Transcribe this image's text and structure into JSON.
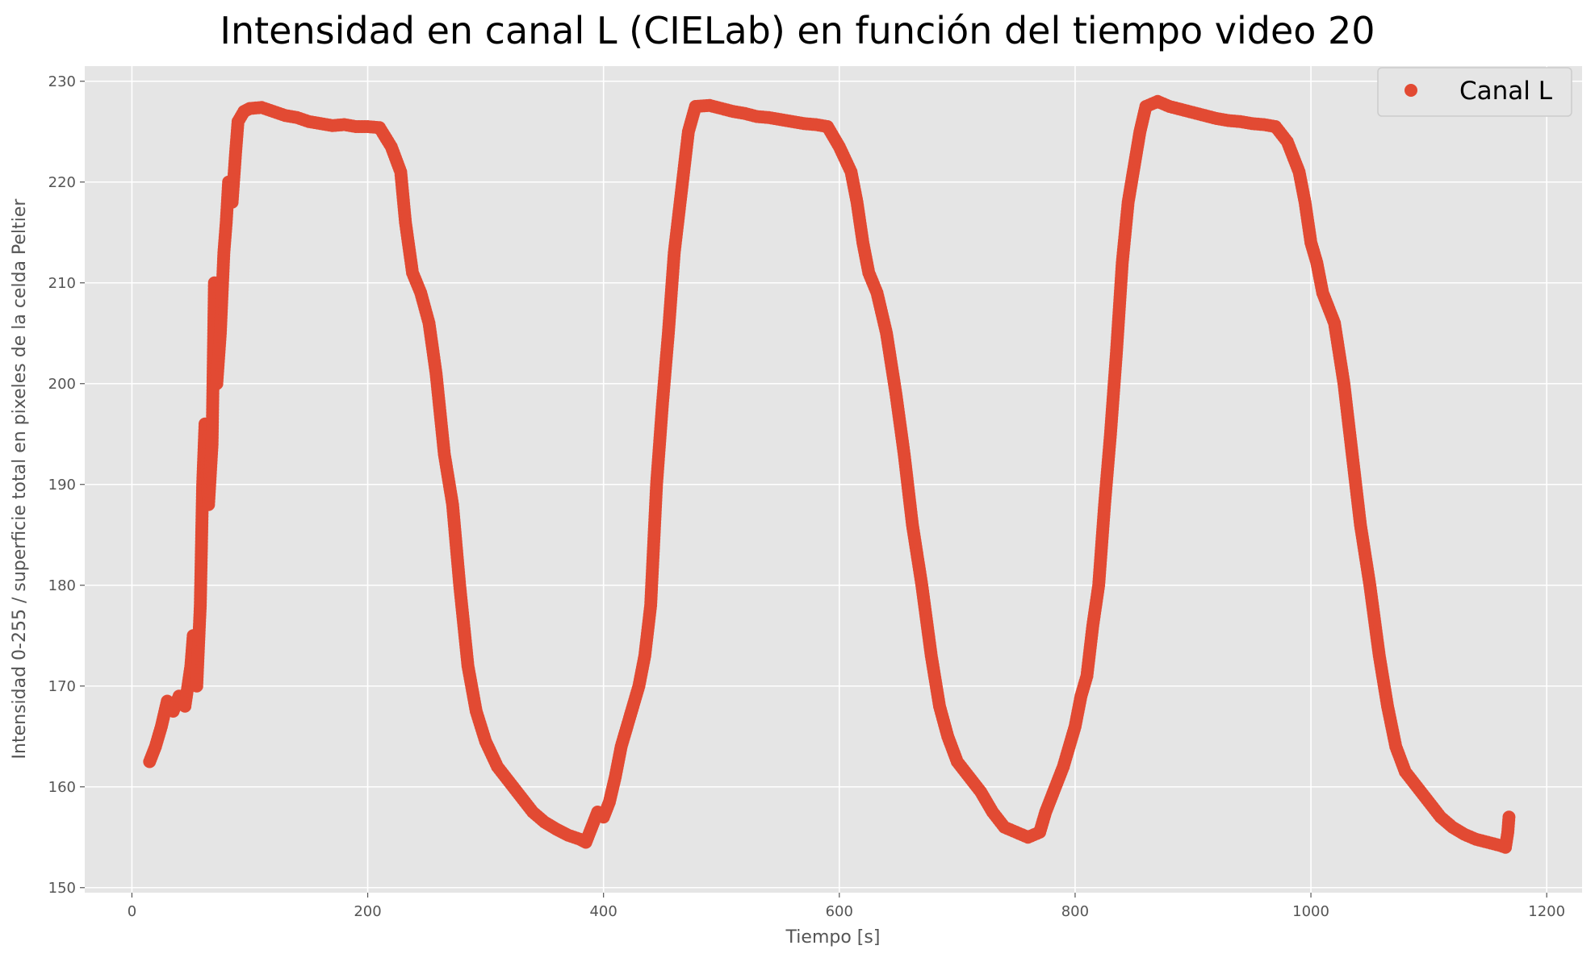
{
  "chart_data": {
    "type": "scatter",
    "title": "Intensidad en canal L (CIELab) en función del tiempo video 20",
    "xlabel": "Tiempo [s]",
    "ylabel": "Intensidad 0-255 / superficie total en pixeles de la celda Peltier",
    "xlim": [
      -40,
      1230
    ],
    "ylim": [
      149.5,
      231.5
    ],
    "x_ticks": [
      0,
      200,
      400,
      600,
      800,
      1000,
      1200
    ],
    "y_ticks": [
      150,
      160,
      170,
      180,
      190,
      200,
      210,
      220,
      230
    ],
    "grid": true,
    "legend_position": "top-right",
    "colors": {
      "series": "#E24A33",
      "plot_background": "#E5E5E5",
      "grid": "#FFFFFF"
    },
    "series": [
      {
        "name": "Canal L",
        "marker": "circle",
        "points": [
          [
            15,
            162.5
          ],
          [
            20,
            164
          ],
          [
            25,
            166
          ],
          [
            30,
            168.5
          ],
          [
            35,
            167.5
          ],
          [
            40,
            169
          ],
          [
            45,
            168
          ],
          [
            50,
            172
          ],
          [
            52,
            175
          ],
          [
            55,
            170
          ],
          [
            58,
            178
          ],
          [
            60,
            190
          ],
          [
            62,
            196
          ],
          [
            65,
            188
          ],
          [
            68,
            194
          ],
          [
            70,
            210
          ],
          [
            72,
            200
          ],
          [
            75,
            205
          ],
          [
            78,
            213
          ],
          [
            80,
            216
          ],
          [
            82,
            220
          ],
          [
            85,
            218
          ],
          [
            88,
            223
          ],
          [
            90,
            226
          ],
          [
            95,
            227
          ],
          [
            100,
            227.3
          ],
          [
            110,
            227.4
          ],
          [
            120,
            227
          ],
          [
            130,
            226.6
          ],
          [
            140,
            226.4
          ],
          [
            150,
            226
          ],
          [
            160,
            225.8
          ],
          [
            170,
            225.6
          ],
          [
            180,
            225.7
          ],
          [
            190,
            225.5
          ],
          [
            200,
            225.5
          ],
          [
            210,
            225.4
          ],
          [
            220,
            223.5
          ],
          [
            228,
            221
          ],
          [
            232,
            216
          ],
          [
            238,
            211
          ],
          [
            245,
            209
          ],
          [
            252,
            206
          ],
          [
            258,
            201
          ],
          [
            265,
            193
          ],
          [
            272,
            188
          ],
          [
            278,
            180
          ],
          [
            285,
            172
          ],
          [
            292,
            167.5
          ],
          [
            300,
            164.5
          ],
          [
            310,
            162
          ],
          [
            320,
            160.5
          ],
          [
            330,
            159
          ],
          [
            340,
            157.5
          ],
          [
            350,
            156.5
          ],
          [
            360,
            155.8
          ],
          [
            370,
            155.2
          ],
          [
            380,
            154.8
          ],
          [
            385,
            154.5
          ],
          [
            390,
            156
          ],
          [
            395,
            157.5
          ],
          [
            400,
            157
          ],
          [
            405,
            158.5
          ],
          [
            410,
            161
          ],
          [
            415,
            164
          ],
          [
            420,
            166
          ],
          [
            425,
            168
          ],
          [
            430,
            170
          ],
          [
            435,
            173
          ],
          [
            440,
            178
          ],
          [
            445,
            190
          ],
          [
            450,
            198
          ],
          [
            455,
            205
          ],
          [
            460,
            213
          ],
          [
            465,
            218
          ],
          [
            468,
            221
          ],
          [
            472,
            225
          ],
          [
            478,
            227.5
          ],
          [
            490,
            227.6
          ],
          [
            500,
            227.3
          ],
          [
            510,
            227
          ],
          [
            520,
            226.8
          ],
          [
            530,
            226.5
          ],
          [
            540,
            226.4
          ],
          [
            550,
            226.2
          ],
          [
            560,
            226
          ],
          [
            570,
            225.8
          ],
          [
            580,
            225.7
          ],
          [
            590,
            225.5
          ],
          [
            600,
            223.5
          ],
          [
            610,
            221
          ],
          [
            615,
            218
          ],
          [
            620,
            214
          ],
          [
            625,
            211
          ],
          [
            632,
            209
          ],
          [
            640,
            205
          ],
          [
            648,
            199
          ],
          [
            655,
            193
          ],
          [
            662,
            186
          ],
          [
            670,
            180
          ],
          [
            678,
            173
          ],
          [
            685,
            168
          ],
          [
            692,
            165
          ],
          [
            700,
            162.5
          ],
          [
            710,
            161
          ],
          [
            720,
            159.5
          ],
          [
            730,
            157.5
          ],
          [
            740,
            156
          ],
          [
            750,
            155.5
          ],
          [
            760,
            155
          ],
          [
            770,
            155.5
          ],
          [
            775,
            157.5
          ],
          [
            780,
            159
          ],
          [
            790,
            162
          ],
          [
            800,
            166
          ],
          [
            805,
            169
          ],
          [
            810,
            171
          ],
          [
            815,
            176
          ],
          [
            820,
            180
          ],
          [
            825,
            188
          ],
          [
            830,
            195
          ],
          [
            835,
            203
          ],
          [
            840,
            212
          ],
          [
            845,
            218
          ],
          [
            850,
            221.5
          ],
          [
            855,
            225
          ],
          [
            860,
            227.5
          ],
          [
            870,
            228
          ],
          [
            880,
            227.5
          ],
          [
            890,
            227.2
          ],
          [
            900,
            226.9
          ],
          [
            910,
            226.6
          ],
          [
            920,
            226.3
          ],
          [
            930,
            226.1
          ],
          [
            940,
            226
          ],
          [
            950,
            225.8
          ],
          [
            960,
            225.7
          ],
          [
            970,
            225.5
          ],
          [
            980,
            224
          ],
          [
            990,
            221
          ],
          [
            995,
            218
          ],
          [
            1000,
            214
          ],
          [
            1005,
            212
          ],
          [
            1010,
            209
          ],
          [
            1020,
            206
          ],
          [
            1028,
            200
          ],
          [
            1035,
            193
          ],
          [
            1042,
            186
          ],
          [
            1050,
            180
          ],
          [
            1058,
            173
          ],
          [
            1065,
            168
          ],
          [
            1072,
            164
          ],
          [
            1080,
            161.5
          ],
          [
            1090,
            160
          ],
          [
            1100,
            158.5
          ],
          [
            1110,
            157
          ],
          [
            1120,
            156
          ],
          [
            1130,
            155.3
          ],
          [
            1140,
            154.8
          ],
          [
            1150,
            154.5
          ],
          [
            1160,
            154.2
          ],
          [
            1165,
            154
          ],
          [
            1167,
            155.5
          ],
          [
            1168,
            157
          ]
        ]
      }
    ]
  }
}
